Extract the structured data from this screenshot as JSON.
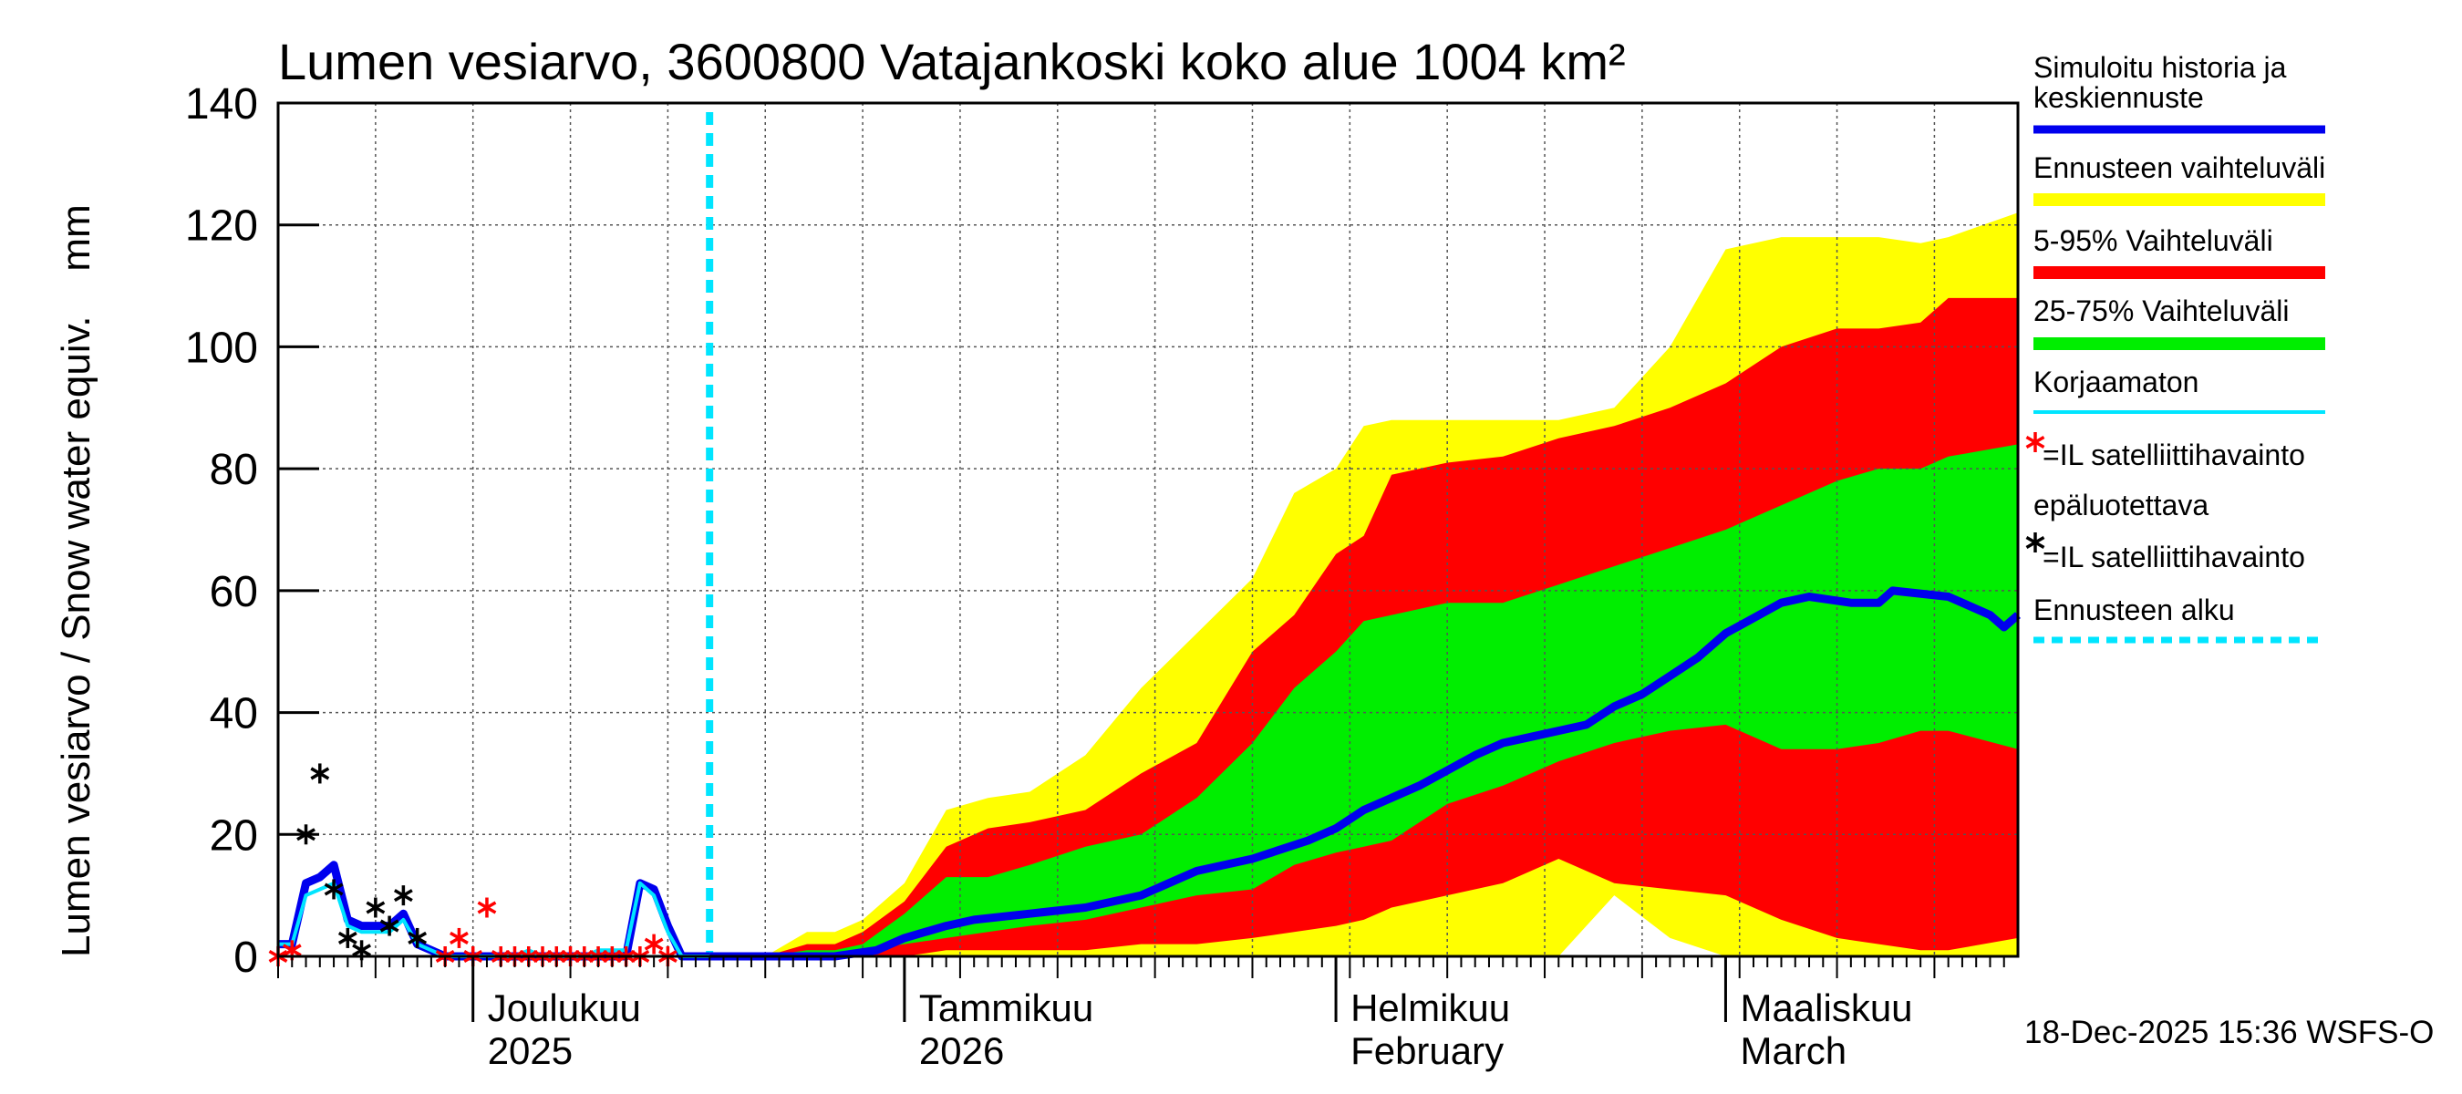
{
  "chart_data": {
    "type": "area",
    "title": "Lumen vesiarvo, 3600800 Vatajankoski koko alue 1004 km²",
    "ylabel": "Lumen vesiarvo / Snow water equiv.    mm",
    "ylim": [
      0,
      140
    ],
    "yticks": [
      0,
      20,
      40,
      60,
      80,
      100,
      120,
      140
    ],
    "x_unit": "days since 2025-11-08",
    "xlim": [
      0,
      125
    ],
    "forecast_start": 31,
    "month_labels": [
      {
        "day": 14,
        "line1": "Joulukuu",
        "line2": "2025"
      },
      {
        "day": 45,
        "line1": "Tammikuu",
        "line2": "2026"
      },
      {
        "day": 76,
        "line1": "Helmikuu",
        "line2": "February"
      },
      {
        "day": 104,
        "line1": "Maaliskuu",
        "line2": "March"
      }
    ],
    "month_boundaries": [
      14,
      45,
      76,
      104
    ],
    "timestamp": "18-Dec-2025 15:36 WSFS-O",
    "legend": [
      {
        "label": "Simuloitu historia ja",
        "label2": "keskiennuste",
        "color": "#0000ee",
        "kind": "line"
      },
      {
        "label": "Ennusteen vaihteluväli",
        "color": "#ffff00",
        "kind": "band"
      },
      {
        "label": "5-95% Vaihteluväli",
        "color": "#ff0000",
        "kind": "band"
      },
      {
        "label": "25-75% Vaihteluväli",
        "color": "#00ee00",
        "kind": "band"
      },
      {
        "label": "Korjaamaton",
        "color": "#00e5ff",
        "kind": "thin"
      },
      {
        "label": "=IL satelliittihavainto",
        "pre": "epäluotettava",
        "color": "#ff0000",
        "kind": "star"
      },
      {
        "label": "=IL satelliittihavainto",
        "color": "#000000",
        "kind": "star"
      },
      {
        "label": "Ennusteen alku",
        "color": "#00e5ff",
        "kind": "dash"
      }
    ],
    "series": [
      {
        "name": "Simuloitu historia ja keskiennuste",
        "x": [
          0,
          1,
          2,
          3,
          4,
          5,
          6,
          7,
          8,
          9,
          10,
          11,
          12,
          13,
          14,
          15,
          16,
          17,
          18,
          19,
          20,
          21,
          22,
          23,
          24,
          25,
          26,
          27,
          28,
          29,
          30,
          31
        ],
        "values": [
          2,
          2,
          12,
          13,
          15,
          6,
          5,
          5,
          5,
          7,
          2,
          1,
          0,
          0,
          0,
          0,
          0,
          0,
          0,
          0,
          0,
          0,
          0,
          0,
          0,
          0,
          12,
          11,
          5,
          0,
          0,
          0
        ]
      },
      {
        "name": "Korjaamaton",
        "x": [
          0,
          1,
          2,
          3,
          4,
          5,
          6,
          7,
          8,
          9,
          10,
          11,
          12,
          13,
          14,
          15,
          16,
          17,
          18,
          19,
          20,
          21,
          22,
          23,
          24,
          25,
          26,
          27,
          28,
          29,
          30,
          31
        ],
        "values": [
          2,
          2,
          10,
          11,
          12,
          5,
          4,
          4,
          4,
          6,
          2,
          1,
          0,
          0,
          0,
          0,
          0,
          0,
          1,
          0,
          0,
          0,
          0,
          1,
          1,
          1,
          12,
          10,
          4,
          0,
          0,
          0
        ]
      },
      {
        "name": "keskiennuste",
        "x": [
          31,
          35,
          40,
          43,
          45,
          48,
          50,
          54,
          58,
          62,
          66,
          70,
          74,
          76,
          78,
          82,
          86,
          88,
          90,
          94,
          96,
          98,
          100,
          102,
          104,
          108,
          110,
          113,
          115,
          116,
          120,
          123,
          124,
          125
        ],
        "values": [
          0,
          0,
          0,
          1,
          3,
          5,
          6,
          7,
          8,
          10,
          14,
          16,
          19,
          21,
          24,
          28,
          33,
          35,
          36,
          38,
          41,
          43,
          46,
          49,
          53,
          58,
          59,
          58,
          58,
          60,
          59,
          56,
          54,
          56
        ]
      },
      {
        "name": "ens_max",
        "x": [
          31,
          35,
          38,
          40,
          42,
          45,
          48,
          51,
          54,
          58,
          62,
          66,
          70,
          73,
          76,
          78,
          80,
          84,
          88,
          92,
          96,
          100,
          104,
          108,
          112,
          115,
          118,
          120,
          125
        ],
        "values": [
          0,
          0,
          4,
          4,
          6,
          12,
          24,
          26,
          27,
          33,
          44,
          53,
          62,
          76,
          80,
          87,
          88,
          88,
          88,
          88,
          90,
          100,
          116,
          118,
          118,
          118,
          117,
          118,
          122
        ]
      },
      {
        "name": "p95",
        "x": [
          31,
          35,
          38,
          40,
          42,
          45,
          48,
          51,
          54,
          58,
          62,
          66,
          70,
          73,
          76,
          78,
          80,
          84,
          88,
          92,
          96,
          100,
          104,
          108,
          112,
          115,
          118,
          120,
          125
        ],
        "values": [
          0,
          0,
          2,
          2,
          4,
          9,
          18,
          21,
          22,
          24,
          30,
          35,
          50,
          56,
          66,
          69,
          79,
          81,
          82,
          85,
          87,
          90,
          94,
          100,
          103,
          103,
          104,
          108,
          108
        ]
      },
      {
        "name": "p75",
        "x": [
          31,
          35,
          38,
          40,
          42,
          45,
          48,
          51,
          54,
          58,
          62,
          66,
          70,
          73,
          76,
          78,
          80,
          84,
          88,
          92,
          96,
          100,
          104,
          108,
          112,
          115,
          118,
          120,
          125
        ],
        "values": [
          0,
          0,
          1,
          1,
          2,
          7,
          13,
          13,
          15,
          18,
          20,
          26,
          35,
          44,
          50,
          55,
          56,
          58,
          58,
          61,
          64,
          67,
          70,
          74,
          78,
          80,
          80,
          82,
          84
        ]
      },
      {
        "name": "p25",
        "x": [
          31,
          35,
          38,
          40,
          42,
          45,
          48,
          51,
          54,
          58,
          62,
          66,
          70,
          73,
          76,
          78,
          80,
          84,
          88,
          92,
          96,
          100,
          104,
          108,
          112,
          115,
          118,
          120,
          125
        ],
        "values": [
          0,
          0,
          0,
          0,
          1,
          2,
          3,
          4,
          5,
          6,
          8,
          10,
          11,
          15,
          17,
          18,
          19,
          25,
          28,
          32,
          35,
          37,
          38,
          34,
          34,
          35,
          37,
          37,
          34
        ]
      },
      {
        "name": "p5",
        "x": [
          31,
          35,
          38,
          40,
          42,
          45,
          48,
          51,
          54,
          58,
          62,
          66,
          70,
          73,
          76,
          78,
          80,
          84,
          88,
          92,
          96,
          100,
          104,
          108,
          112,
          115,
          118,
          120,
          125
        ],
        "values": [
          0,
          0,
          0,
          0,
          0,
          0,
          1,
          1,
          1,
          1,
          2,
          2,
          3,
          4,
          5,
          6,
          8,
          10,
          12,
          16,
          12,
          11,
          10,
          6,
          3,
          2,
          1,
          1,
          3
        ]
      },
      {
        "name": "ens_min",
        "x": [
          31,
          35,
          38,
          40,
          42,
          45,
          48,
          51,
          54,
          58,
          62,
          66,
          70,
          73,
          76,
          78,
          80,
          84,
          88,
          92,
          96,
          100,
          104,
          108,
          112,
          115,
          118,
          120,
          125
        ],
        "values": [
          0,
          0,
          0,
          0,
          0,
          0,
          0,
          0,
          0,
          0,
          0,
          0,
          0,
          0,
          0,
          0,
          0,
          0,
          0,
          0,
          10,
          3,
          0,
          0,
          0,
          0,
          0,
          0,
          0
        ]
      }
    ],
    "obs_red": {
      "x": [
        0,
        1,
        12,
        13,
        14,
        15,
        16,
        17,
        18,
        19,
        20,
        21,
        22,
        23,
        24,
        25,
        26,
        27,
        28
      ],
      "values": [
        0,
        1,
        0,
        3,
        0,
        8,
        0,
        0,
        0,
        0,
        0,
        0,
        0,
        0,
        0,
        0,
        0,
        2,
        0
      ]
    },
    "obs_black": {
      "x": [
        2,
        3,
        4,
        5,
        6,
        7,
        8,
        9,
        10
      ],
      "values": [
        20,
        30,
        11,
        3,
        1,
        8,
        5,
        10,
        3
      ]
    }
  }
}
